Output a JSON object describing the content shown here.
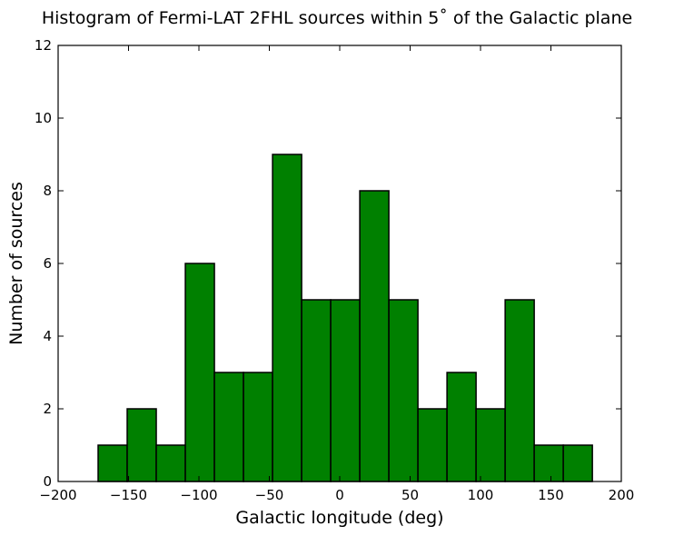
{
  "chart_data": {
    "type": "bar",
    "title": "Histogram of Fermi-LAT 2FHL sources within 5˚ of the Galactic plane",
    "xlabel": "Galactic longitude (deg)",
    "ylabel": "Number of sources",
    "xlim": [
      -200,
      200
    ],
    "ylim": [
      0,
      12
    ],
    "xticks": [
      "−200",
      "−150",
      "−100",
      "−50",
      "0",
      "50",
      "100",
      "150",
      "200"
    ],
    "xtick_values": [
      -200,
      -150,
      -100,
      -50,
      0,
      50,
      100,
      150,
      200
    ],
    "yticks": [
      "0",
      "2",
      "4",
      "6",
      "8",
      "10",
      "12"
    ],
    "ytick_values": [
      0,
      2,
      4,
      6,
      8,
      10,
      12
    ],
    "bin_start": -171.6,
    "bin_width": 20.65,
    "categories": [
      "-171.6",
      "-151.0",
      "-130.3",
      "-109.7",
      "-89.0",
      "-68.4",
      "-47.7",
      "-27.1",
      "-6.4",
      "14.2",
      "34.9",
      "55.5",
      "76.2",
      "96.8",
      "117.5",
      "138.1",
      "158.8"
    ],
    "values": [
      1,
      2,
      1,
      6,
      3,
      3,
      9,
      5,
      5,
      8,
      5,
      2,
      3,
      2,
      5,
      1,
      1
    ],
    "bar_color": "#008000",
    "edge_color": "#000000",
    "grid": false,
    "legend": null
  }
}
